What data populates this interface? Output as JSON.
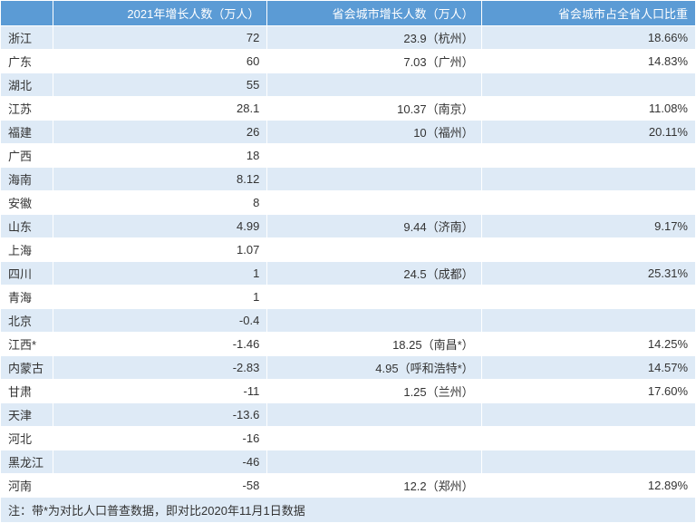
{
  "table": {
    "headers": {
      "col0": "",
      "col1": "2021年增长人数（万人）",
      "col2": "省会城市增长人数（万人）",
      "col3": "省会城市占全省人口比重"
    },
    "rows": [
      {
        "province": "浙江",
        "growth": "72",
        "capital_growth": "23.9（杭州）",
        "capital_ratio": "18.66%"
      },
      {
        "province": "广东",
        "growth": "60",
        "capital_growth": "7.03（广州）",
        "capital_ratio": "14.83%"
      },
      {
        "province": "湖北",
        "growth": "55",
        "capital_growth": "",
        "capital_ratio": ""
      },
      {
        "province": "江苏",
        "growth": "28.1",
        "capital_growth": "10.37（南京）",
        "capital_ratio": "11.08%"
      },
      {
        "province": "福建",
        "growth": "26",
        "capital_growth": "10（福州）",
        "capital_ratio": "20.11%"
      },
      {
        "province": "广西",
        "growth": "18",
        "capital_growth": "",
        "capital_ratio": ""
      },
      {
        "province": "海南",
        "growth": "8.12",
        "capital_growth": "",
        "capital_ratio": ""
      },
      {
        "province": "安徽",
        "growth": "8",
        "capital_growth": "",
        "capital_ratio": ""
      },
      {
        "province": "山东",
        "growth": "4.99",
        "capital_growth": "9.44（济南）",
        "capital_ratio": "9.17%"
      },
      {
        "province": "上海",
        "growth": "1.07",
        "capital_growth": "",
        "capital_ratio": ""
      },
      {
        "province": "四川",
        "growth": "1",
        "capital_growth": "24.5（成都）",
        "capital_ratio": "25.31%"
      },
      {
        "province": "青海",
        "growth": "1",
        "capital_growth": "",
        "capital_ratio": ""
      },
      {
        "province": "北京",
        "growth": "-0.4",
        "capital_growth": "",
        "capital_ratio": ""
      },
      {
        "province": "江西*",
        "growth": "-1.46",
        "capital_growth": "18.25（南昌*）",
        "capital_ratio": "14.25%"
      },
      {
        "province": "内蒙古",
        "growth": "-2.83",
        "capital_growth": "4.95（呼和浩特*）",
        "capital_ratio": "14.57%"
      },
      {
        "province": "甘肃",
        "growth": "-11",
        "capital_growth": "1.25（兰州）",
        "capital_ratio": "17.60%"
      },
      {
        "province": "天津",
        "growth": "-13.6",
        "capital_growth": "",
        "capital_ratio": ""
      },
      {
        "province": "河北",
        "growth": "-16",
        "capital_growth": "",
        "capital_ratio": ""
      },
      {
        "province": "黑龙江",
        "growth": "-46",
        "capital_growth": "",
        "capital_ratio": ""
      },
      {
        "province": "河南",
        "growth": "-58",
        "capital_growth": "12.2（郑州）",
        "capital_ratio": "12.89%"
      }
    ],
    "footnote": "注：带*为对比人口普查数据，即对比2020年11月1日数据",
    "colors": {
      "header_bg": "#5b9bd5",
      "header_text": "#ffffff",
      "row_odd_bg": "#deeaf6",
      "row_even_bg": "#ffffff",
      "text": "#333333"
    }
  }
}
